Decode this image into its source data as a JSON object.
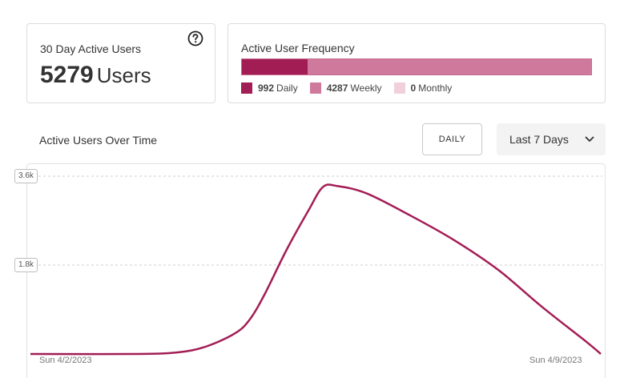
{
  "active_users_card": {
    "title": "30 Day Active Users",
    "count": "5279",
    "unit": "Users"
  },
  "frequency_card": {
    "title": "Active User Frequency",
    "segments": [
      {
        "label": "Daily",
        "value": "992",
        "count": 992,
        "color": "#a31d55"
      },
      {
        "label": "Weekly",
        "value": "4287",
        "count": 4287,
        "color": "#cf7a9c"
      },
      {
        "label": "Monthly",
        "value": "0",
        "count": 0,
        "color": "#f0d0dc"
      }
    ]
  },
  "over_time": {
    "title": "Active Users Over Time",
    "granularity_button": "DAILY",
    "range_select": "Last 7 Days"
  },
  "chart_data": {
    "type": "line",
    "x_labels": [
      "Sun 4/2/2023",
      "Sun 4/9/2023"
    ],
    "y_tick_labels": [
      "3.6k",
      "1.8k"
    ],
    "y_ticks": [
      3600,
      1800
    ],
    "ylim": [
      0,
      3600
    ],
    "grid": true,
    "series": [
      {
        "color": "#a31d55",
        "points": [
          [
            4.0,
            0
          ],
          [
            4.7,
            0
          ],
          [
            5.0,
            30
          ],
          [
            5.2,
            150
          ],
          [
            5.4,
            420
          ],
          [
            5.5,
            700
          ],
          [
            5.6,
            1200
          ],
          [
            5.75,
            2100
          ],
          [
            5.9,
            2900
          ],
          [
            6.0,
            3380
          ],
          [
            6.1,
            3400
          ],
          [
            6.3,
            3250
          ],
          [
            6.6,
            2800
          ],
          [
            6.9,
            2300
          ],
          [
            7.2,
            1700
          ],
          [
            7.5,
            950
          ],
          [
            7.8,
            250
          ],
          [
            7.9,
            0
          ]
        ]
      }
    ]
  }
}
